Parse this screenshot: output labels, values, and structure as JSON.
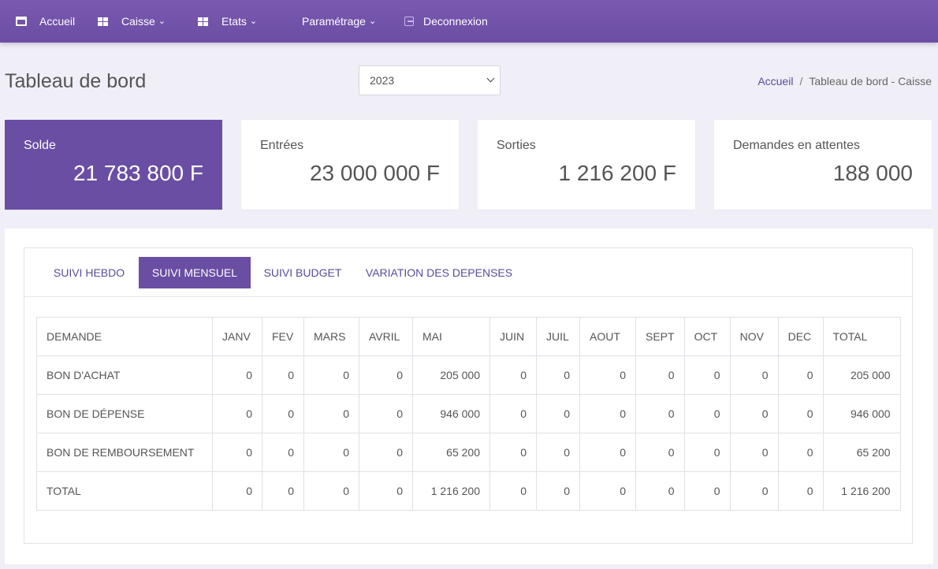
{
  "nav": {
    "items": [
      {
        "label": "Accueil",
        "icon": "window-icon",
        "dropdown": false
      },
      {
        "label": "Caisse",
        "icon": "grid-icon",
        "dropdown": true
      },
      {
        "label": "Etats",
        "icon": "grid-icon",
        "dropdown": true
      },
      {
        "label": "Paramétrage",
        "icon": "",
        "dropdown": true
      },
      {
        "label": "Deconnexion",
        "icon": "logout-icon",
        "dropdown": false
      }
    ]
  },
  "header": {
    "title": "Tableau de bord",
    "year_select": "2023",
    "breadcrumb": {
      "link": "Accueil",
      "separator": "/",
      "current": "Tableau de bord - Caisse"
    }
  },
  "cards": [
    {
      "label": "Solde",
      "value": "21 783 800 F"
    },
    {
      "label": "Entrées",
      "value": "23 000 000 F"
    },
    {
      "label": "Sorties",
      "value": "1 216 200 F"
    },
    {
      "label": "Demandes en attentes",
      "value": "188 000"
    }
  ],
  "tabs": [
    {
      "label": "SUIVI HEBDO",
      "active": false
    },
    {
      "label": "SUIVI MENSUEL",
      "active": true
    },
    {
      "label": "SUIVI BUDGET",
      "active": false
    },
    {
      "label": "VARIATION DES DEPENSES",
      "active": false
    }
  ],
  "table": {
    "headers": [
      "DEMANDE",
      "JANV",
      "FEV",
      "MARS",
      "AVRIL",
      "MAI",
      "JUIN",
      "JUIL",
      "AOUT",
      "SEPT",
      "OCT",
      "NOV",
      "DEC",
      "TOTAL"
    ],
    "rows": [
      [
        "BON D'ACHAT",
        "0",
        "0",
        "0",
        "0",
        "205 000",
        "0",
        "0",
        "0",
        "0",
        "0",
        "0",
        "0",
        "205 000"
      ],
      [
        "BON DE DÉPENSE",
        "0",
        "0",
        "0",
        "0",
        "946 000",
        "0",
        "0",
        "0",
        "0",
        "0",
        "0",
        "0",
        "946 000"
      ],
      [
        "BON DE REMBOURSEMENT",
        "0",
        "0",
        "0",
        "0",
        "65 200",
        "0",
        "0",
        "0",
        "0",
        "0",
        "0",
        "0",
        "65 200"
      ],
      [
        "TOTAL",
        "0",
        "0",
        "0",
        "0",
        "1 216 200",
        "0",
        "0",
        "0",
        "0",
        "0",
        "0",
        "0",
        "1 216 200"
      ]
    ]
  },
  "colors": {
    "accent": "#6a4ea4",
    "nav_bg": "#7b59b0",
    "page_bg": "#f0eff7"
  }
}
